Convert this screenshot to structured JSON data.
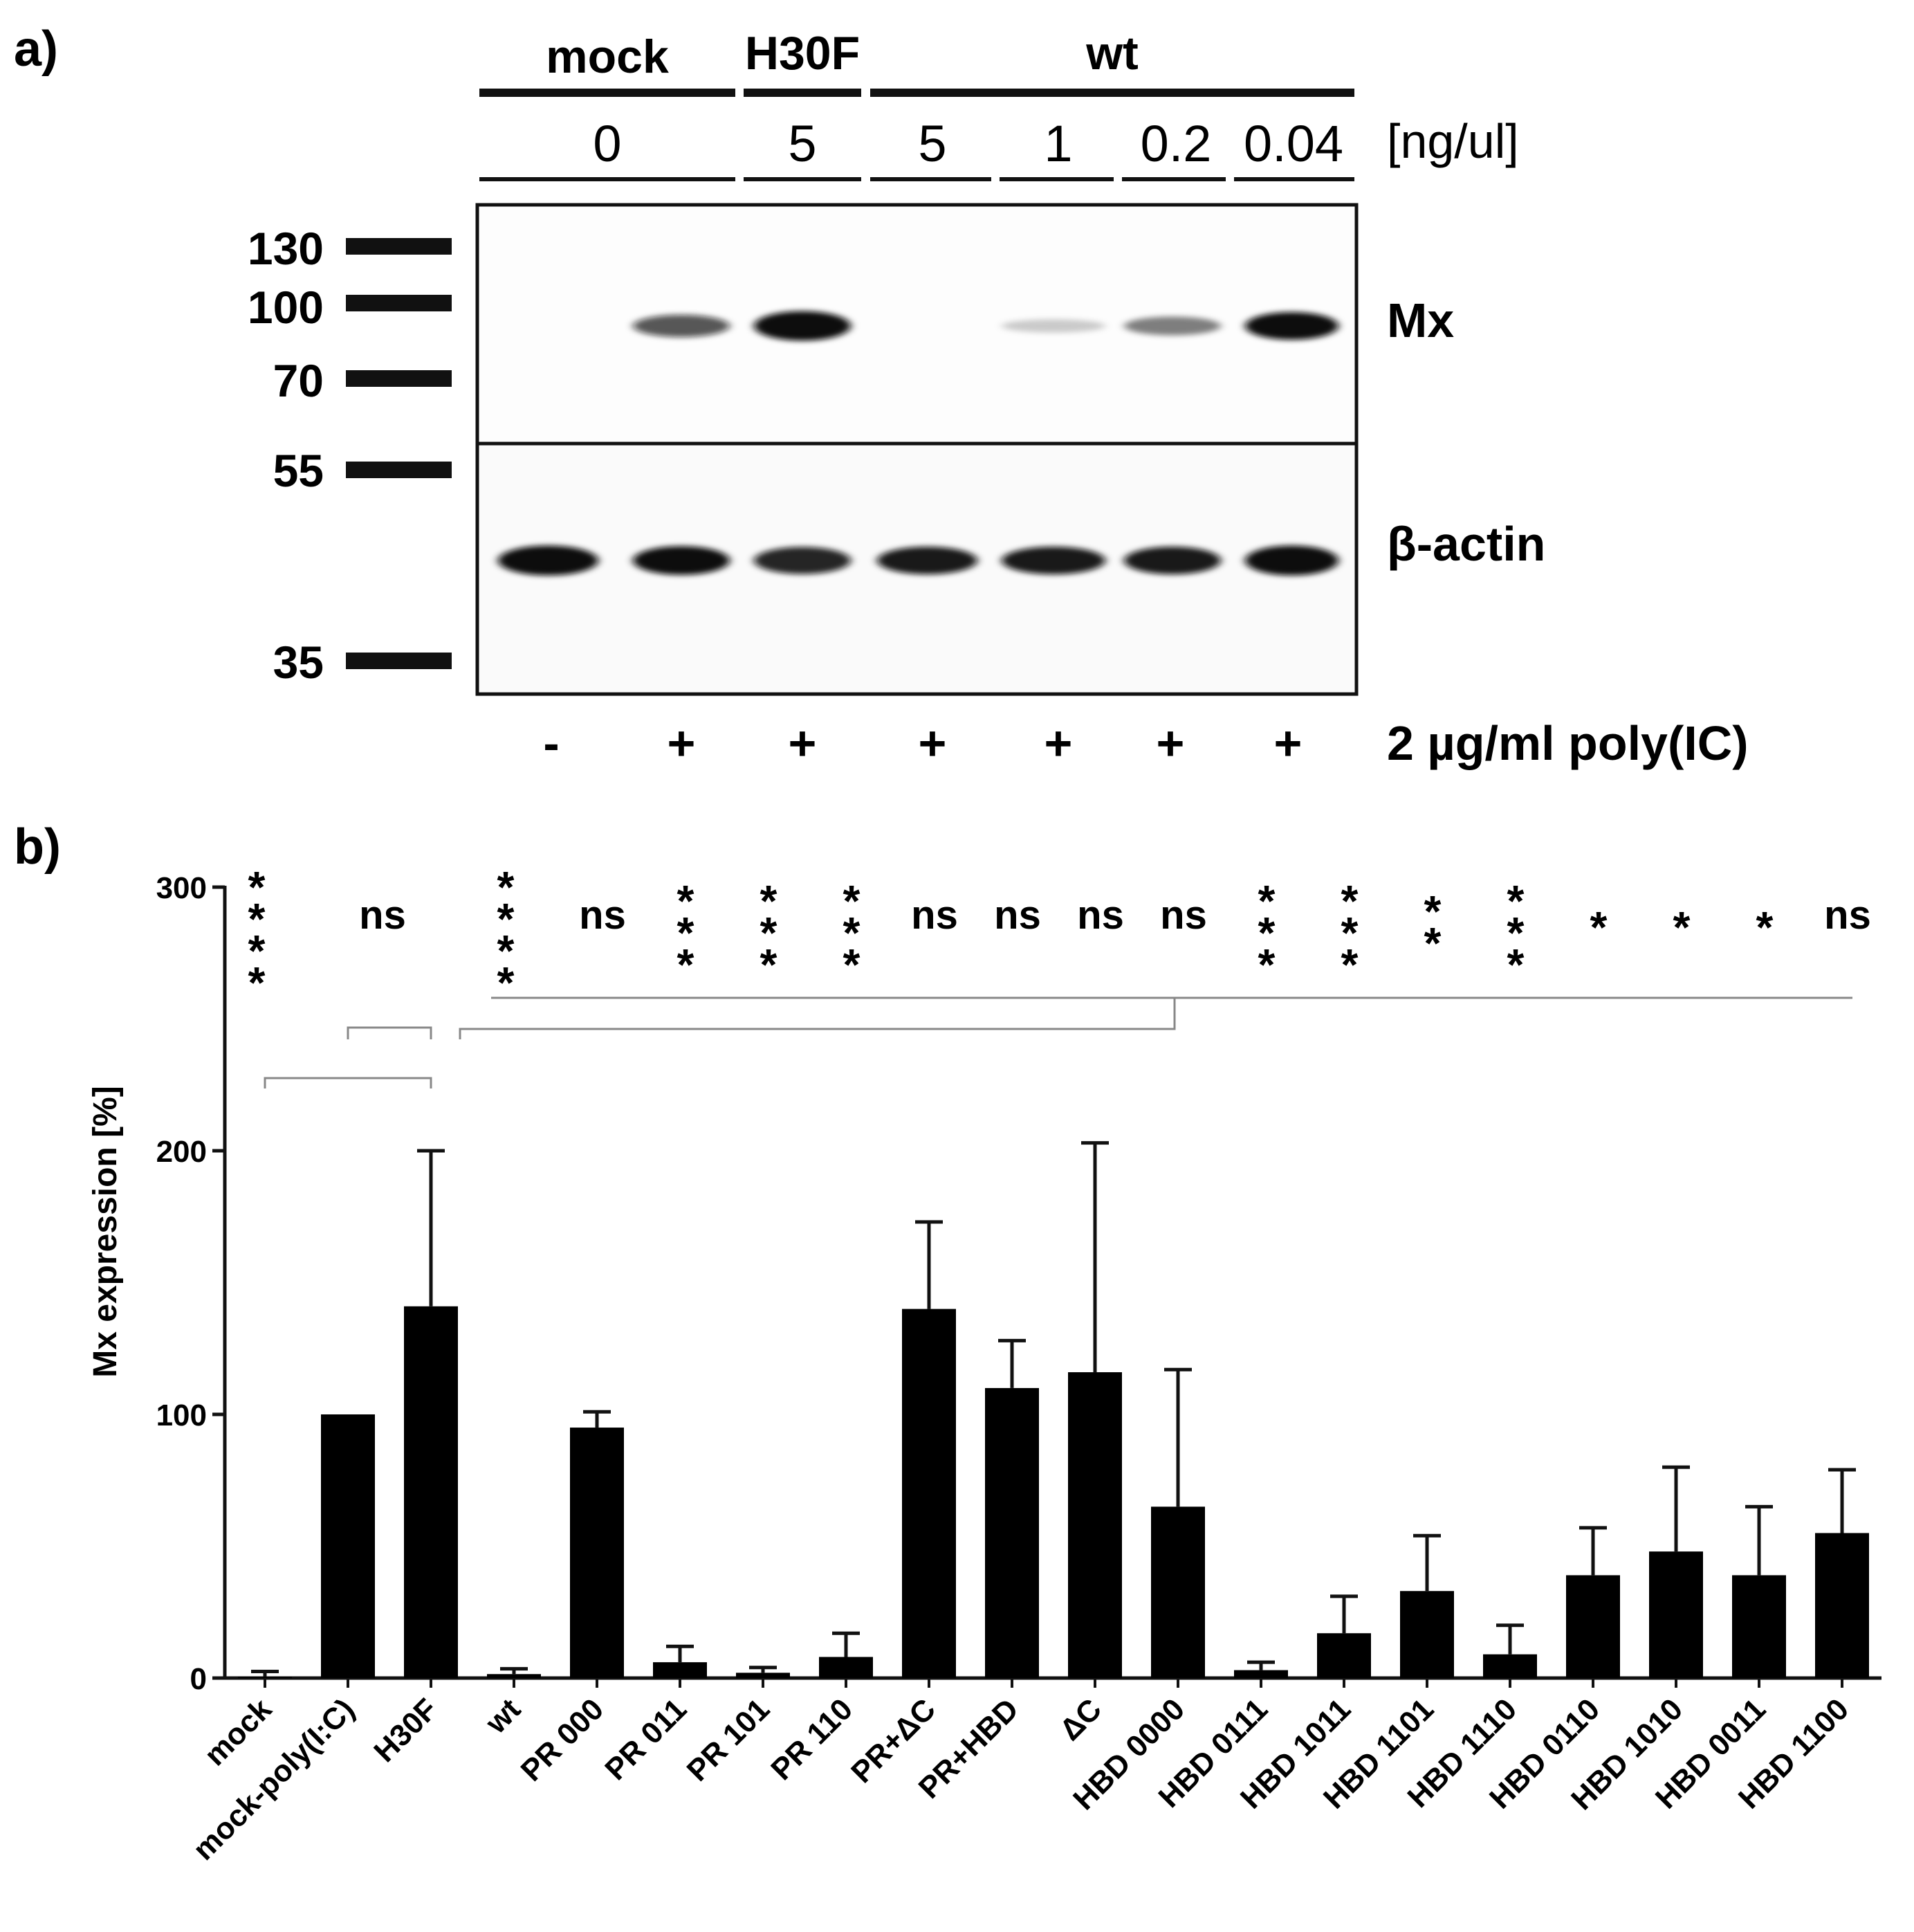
{
  "panel_a": {
    "label": "a)",
    "groups": [
      "mock",
      "H30F",
      "wt"
    ],
    "concentrations": [
      "0",
      "5",
      "5",
      "1",
      "0.2",
      "0.04"
    ],
    "concentration_unit": "[ng/ul]",
    "markers": [
      "130",
      "100",
      "70",
      "55",
      "35"
    ],
    "target_labels": [
      "Mx",
      "β-actin"
    ],
    "treatment_signs": [
      "-",
      "+",
      "+",
      "+",
      "+",
      "+",
      "+"
    ],
    "treatment_label": "2 µg/ml poly(IC)",
    "band_intensity": {
      "mx": [
        0.0,
        0.55,
        0.95,
        0.0,
        0.05,
        0.35,
        0.85
      ],
      "actin": [
        0.95,
        0.85,
        0.7,
        0.75,
        0.75,
        0.75,
        0.95
      ]
    }
  },
  "panel_b": {
    "label": "b)",
    "significance": [
      "****",
      "ns",
      "****",
      "ns",
      "***",
      "***",
      "***",
      "ns",
      "ns",
      "ns",
      "ns",
      "***",
      "***",
      "**",
      "***",
      "*",
      "*",
      "*",
      "ns"
    ]
  },
  "chart_data": {
    "type": "bar",
    "title": "",
    "xlabel": "",
    "ylabel": "Mx expression [%]",
    "ylim": [
      0,
      300
    ],
    "yticks": [
      "0",
      "100",
      "200",
      "300"
    ],
    "categories": [
      "mock",
      "mock-poly(I:C)",
      "H30F",
      "wt",
      "PR 000",
      "PR 011",
      "PR 101",
      "PR 110",
      "PR+ΔC",
      "PR+HBD",
      "ΔC",
      "HBD 0000",
      "HBD 0111",
      "HBD 1011",
      "HBD 1101",
      "HBD 1110",
      "HBD 0110",
      "HBD 1010",
      "HBD 0011",
      "HBD 1100"
    ],
    "values": [
      0.5,
      100,
      141,
      1.5,
      95,
      6,
      2,
      8,
      140,
      110,
      116,
      65,
      3,
      17,
      33,
      9,
      39,
      48,
      39,
      55
    ],
    "errors": [
      2,
      0,
      59,
      2,
      6,
      6,
      2,
      9,
      33,
      18,
      87,
      52,
      3,
      14,
      21,
      11,
      18,
      32,
      26,
      24
    ]
  }
}
